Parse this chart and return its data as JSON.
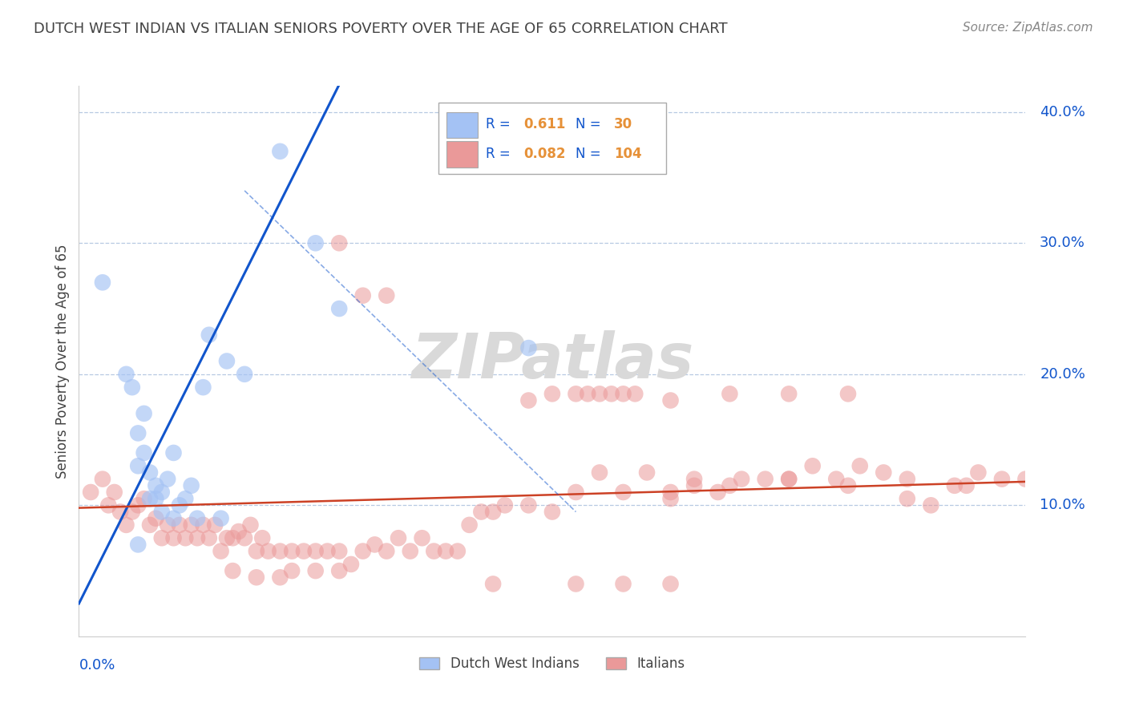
{
  "title": "DUTCH WEST INDIAN VS ITALIAN SENIORS POVERTY OVER THE AGE OF 65 CORRELATION CHART",
  "source": "Source: ZipAtlas.com",
  "ylabel": "Seniors Poverty Over the Age of 65",
  "legend_blue_r": "0.611",
  "legend_blue_n": "30",
  "legend_pink_r": "0.082",
  "legend_pink_n": "104",
  "blue_color": "#a4c2f4",
  "pink_color": "#ea9999",
  "blue_line_color": "#1155cc",
  "pink_line_color": "#cc4125",
  "title_color": "#434343",
  "axis_label_color": "#1155cc",
  "legend_text_color": "#1155cc",
  "legend_value_color": "#e69138",
  "grid_color": "#b7c9e2",
  "watermark_color": "#d9d9d9",
  "background_color": "#ffffff",
  "xmin": 0.0,
  "xmax": 0.8,
  "ymin": 0.0,
  "ymax": 0.42,
  "yticks": [
    0.1,
    0.2,
    0.3,
    0.4
  ],
  "ytick_labels": [
    "10.0%",
    "20.0%",
    "30.0%",
    "40.0%"
  ],
  "blue_scatter_x": [
    0.02,
    0.04,
    0.045,
    0.05,
    0.05,
    0.055,
    0.055,
    0.06,
    0.06,
    0.065,
    0.065,
    0.07,
    0.07,
    0.075,
    0.08,
    0.08,
    0.085,
    0.09,
    0.095,
    0.1,
    0.105,
    0.11,
    0.12,
    0.125,
    0.14,
    0.17,
    0.2,
    0.22,
    0.38,
    0.05
  ],
  "blue_scatter_y": [
    0.27,
    0.2,
    0.19,
    0.13,
    0.155,
    0.14,
    0.17,
    0.105,
    0.125,
    0.105,
    0.115,
    0.095,
    0.11,
    0.12,
    0.09,
    0.14,
    0.1,
    0.105,
    0.115,
    0.09,
    0.19,
    0.23,
    0.09,
    0.21,
    0.2,
    0.37,
    0.3,
    0.25,
    0.22,
    0.07
  ],
  "pink_scatter_x": [
    0.01,
    0.02,
    0.025,
    0.03,
    0.035,
    0.04,
    0.045,
    0.05,
    0.055,
    0.06,
    0.065,
    0.07,
    0.075,
    0.08,
    0.085,
    0.09,
    0.095,
    0.1,
    0.105,
    0.11,
    0.115,
    0.12,
    0.125,
    0.13,
    0.135,
    0.14,
    0.145,
    0.15,
    0.155,
    0.16,
    0.17,
    0.18,
    0.19,
    0.2,
    0.21,
    0.22,
    0.23,
    0.24,
    0.25,
    0.26,
    0.27,
    0.28,
    0.29,
    0.3,
    0.31,
    0.32,
    0.33,
    0.34,
    0.35,
    0.36,
    0.38,
    0.4,
    0.42,
    0.44,
    0.46,
    0.48,
    0.5,
    0.52,
    0.54,
    0.56,
    0.58,
    0.6,
    0.62,
    0.64,
    0.66,
    0.68,
    0.7,
    0.72,
    0.74,
    0.76,
    0.78,
    0.5,
    0.52,
    0.55,
    0.6,
    0.65,
    0.7,
    0.75,
    0.8,
    0.43,
    0.45,
    0.47,
    0.38,
    0.4,
    0.42,
    0.44,
    0.46,
    0.5,
    0.55,
    0.6,
    0.65,
    0.22,
    0.24,
    0.26,
    0.13,
    0.15,
    0.17,
    0.18,
    0.2,
    0.22,
    0.35,
    0.42,
    0.46,
    0.5
  ],
  "pink_scatter_y": [
    0.11,
    0.12,
    0.1,
    0.11,
    0.095,
    0.085,
    0.095,
    0.1,
    0.105,
    0.085,
    0.09,
    0.075,
    0.085,
    0.075,
    0.085,
    0.075,
    0.085,
    0.075,
    0.085,
    0.075,
    0.085,
    0.065,
    0.075,
    0.075,
    0.08,
    0.075,
    0.085,
    0.065,
    0.075,
    0.065,
    0.065,
    0.065,
    0.065,
    0.065,
    0.065,
    0.065,
    0.055,
    0.065,
    0.07,
    0.065,
    0.075,
    0.065,
    0.075,
    0.065,
    0.065,
    0.065,
    0.085,
    0.095,
    0.095,
    0.1,
    0.1,
    0.095,
    0.11,
    0.125,
    0.11,
    0.125,
    0.11,
    0.12,
    0.11,
    0.12,
    0.12,
    0.12,
    0.13,
    0.12,
    0.13,
    0.125,
    0.12,
    0.1,
    0.115,
    0.125,
    0.12,
    0.105,
    0.115,
    0.115,
    0.12,
    0.115,
    0.105,
    0.115,
    0.12,
    0.185,
    0.185,
    0.185,
    0.18,
    0.185,
    0.185,
    0.185,
    0.185,
    0.18,
    0.185,
    0.185,
    0.185,
    0.3,
    0.26,
    0.26,
    0.05,
    0.045,
    0.045,
    0.05,
    0.05,
    0.05,
    0.04,
    0.04,
    0.04,
    0.04
  ]
}
